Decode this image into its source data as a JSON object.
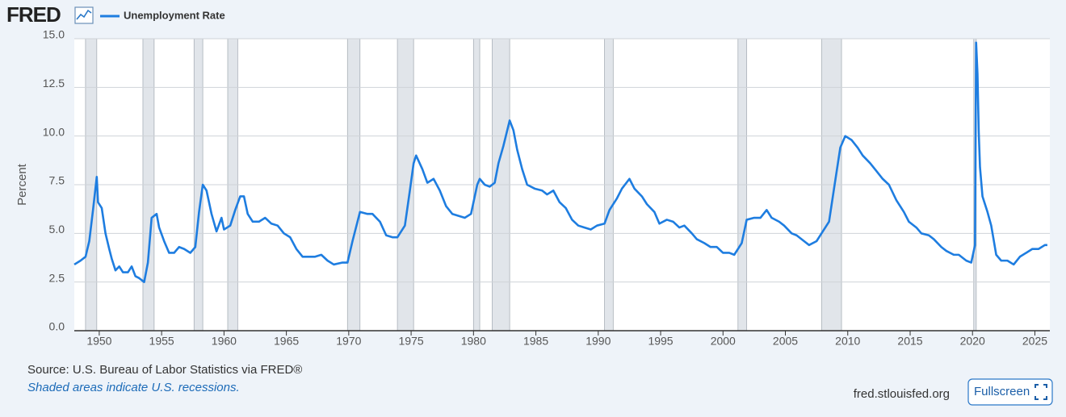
{
  "header": {
    "logo": "FRED"
  },
  "chart_data": {
    "type": "line",
    "ylabel": "Percent",
    "source": "Source: U.S. Bureau of Labor Statistics via FRED®",
    "note": "Shaded areas indicate U.S. recessions.",
    "url": "fred.stlouisfed.org",
    "button": "Fullscreen",
    "xlim": [
      1948,
      2026.2
    ],
    "xticks": [
      1950,
      1955,
      1960,
      1965,
      1970,
      1975,
      1980,
      1985,
      1990,
      1995,
      2000,
      2005,
      2010,
      2015,
      2020,
      2025
    ],
    "ylim": [
      0,
      15
    ],
    "yticks": [
      {
        "value": 0,
        "label": "0.0"
      },
      {
        "value": 2.5,
        "label": "2.5"
      },
      {
        "value": 5,
        "label": "5.0"
      },
      {
        "value": 7.5,
        "label": "7.5"
      },
      {
        "value": 10,
        "label": "10.0"
      },
      {
        "value": 12.5,
        "label": "12.5"
      },
      {
        "value": 15,
        "label": "15.0"
      }
    ],
    "grid": true,
    "recession_color": "#e1e5ea",
    "recessions": [
      [
        1948.9,
        1949.8
      ],
      [
        1953.5,
        1954.4
      ],
      [
        1957.6,
        1958.3
      ],
      [
        1960.3,
        1961.1
      ],
      [
        1969.9,
        1970.9
      ],
      [
        1973.9,
        1975.2
      ],
      [
        1980.0,
        1980.5
      ],
      [
        1981.5,
        1982.9
      ],
      [
        1990.5,
        1991.2
      ],
      [
        2001.2,
        2001.9
      ],
      [
        2007.9,
        2009.5
      ],
      [
        2020.1,
        2020.3
      ]
    ],
    "x": [
      1948.0,
      1948.5,
      1948.9,
      1949.2,
      1949.5,
      1949.8,
      1949.9,
      1950.2,
      1950.5,
      1950.8,
      1951.0,
      1951.3,
      1951.6,
      1951.9,
      1952.3,
      1952.6,
      1952.9,
      1953.2,
      1953.6,
      1953.9,
      1954.2,
      1954.6,
      1954.8,
      1955.2,
      1955.6,
      1956.0,
      1956.4,
      1956.8,
      1957.3,
      1957.7,
      1958.0,
      1958.3,
      1958.6,
      1959.0,
      1959.4,
      1959.8,
      1960.0,
      1960.5,
      1960.9,
      1961.3,
      1961.6,
      1961.9,
      1962.3,
      1962.8,
      1963.3,
      1963.8,
      1964.3,
      1964.8,
      1965.3,
      1965.8,
      1966.3,
      1966.8,
      1967.3,
      1967.8,
      1968.3,
      1968.8,
      1969.5,
      1969.9,
      1970.3,
      1970.9,
      1971.5,
      1971.9,
      1972.5,
      1973.0,
      1973.5,
      1973.9,
      1974.5,
      1974.9,
      1975.2,
      1975.4,
      1975.9,
      1976.3,
      1976.8,
      1977.3,
      1977.8,
      1978.3,
      1978.8,
      1979.3,
      1979.8,
      1980.3,
      1980.5,
      1980.9,
      1981.3,
      1981.7,
      1982.0,
      1982.4,
      1982.9,
      1983.2,
      1983.5,
      1983.9,
      1984.3,
      1984.9,
      1985.5,
      1985.9,
      1986.4,
      1986.9,
      1987.4,
      1987.9,
      1988.4,
      1988.9,
      1989.4,
      1989.9,
      1990.5,
      1990.9,
      1991.5,
      1991.9,
      1992.5,
      1992.9,
      1993.5,
      1993.9,
      1994.5,
      1994.9,
      1995.5,
      1996.0,
      1996.5,
      1996.9,
      1997.5,
      1997.9,
      1998.5,
      1999.0,
      1999.5,
      2000.0,
      2000.5,
      2000.9,
      2001.5,
      2001.9,
      2002.5,
      2003.0,
      2003.5,
      2003.9,
      2004.5,
      2004.9,
      2005.5,
      2005.9,
      2006.5,
      2006.9,
      2007.5,
      2007.9,
      2008.5,
      2008.9,
      2009.4,
      2009.8,
      2010.3,
      2010.8,
      2011.2,
      2011.8,
      2012.3,
      2012.8,
      2013.3,
      2013.9,
      2014.5,
      2014.9,
      2015.5,
      2015.9,
      2016.5,
      2016.9,
      2017.5,
      2017.9,
      2018.5,
      2018.9,
      2019.5,
      2019.9,
      2020.2,
      2020.29,
      2020.4,
      2020.5,
      2020.6,
      2020.8,
      2021.2,
      2021.5,
      2021.9,
      2022.3,
      2022.8,
      2023.3,
      2023.8,
      2024.3,
      2024.8,
      2025.3,
      2025.8,
      2026.0
    ],
    "series": [
      {
        "name": "Unemployment Rate",
        "color": "#1e7de0",
        "values": [
          3.4,
          3.6,
          3.8,
          4.6,
          6.2,
          7.9,
          6.6,
          6.3,
          5.0,
          4.2,
          3.7,
          3.1,
          3.3,
          3.0,
          3.0,
          3.3,
          2.8,
          2.7,
          2.5,
          3.5,
          5.8,
          6.0,
          5.3,
          4.6,
          4.0,
          4.0,
          4.3,
          4.2,
          4.0,
          4.3,
          6.1,
          7.5,
          7.2,
          6.0,
          5.1,
          5.8,
          5.2,
          5.4,
          6.2,
          6.9,
          6.9,
          6.0,
          5.6,
          5.6,
          5.8,
          5.5,
          5.4,
          5.0,
          4.8,
          4.2,
          3.8,
          3.8,
          3.8,
          3.9,
          3.6,
          3.4,
          3.5,
          3.5,
          4.6,
          6.1,
          6.0,
          6.0,
          5.6,
          4.9,
          4.8,
          4.8,
          5.4,
          7.2,
          8.6,
          9.0,
          8.3,
          7.6,
          7.8,
          7.2,
          6.4,
          6.0,
          5.9,
          5.8,
          6.0,
          7.5,
          7.8,
          7.5,
          7.4,
          7.6,
          8.6,
          9.5,
          10.8,
          10.3,
          9.3,
          8.3,
          7.5,
          7.3,
          7.2,
          7.0,
          7.2,
          6.6,
          6.3,
          5.7,
          5.4,
          5.3,
          5.2,
          5.4,
          5.5,
          6.2,
          6.8,
          7.3,
          7.8,
          7.3,
          6.9,
          6.5,
          6.1,
          5.5,
          5.7,
          5.6,
          5.3,
          5.4,
          5.0,
          4.7,
          4.5,
          4.3,
          4.3,
          4.0,
          4.0,
          3.9,
          4.5,
          5.7,
          5.8,
          5.8,
          6.2,
          5.8,
          5.6,
          5.4,
          5.0,
          4.9,
          4.6,
          4.4,
          4.6,
          5.0,
          5.6,
          7.3,
          9.4,
          10.0,
          9.8,
          9.4,
          9.0,
          8.6,
          8.2,
          7.8,
          7.5,
          6.7,
          6.1,
          5.6,
          5.3,
          5.0,
          4.9,
          4.7,
          4.3,
          4.1,
          3.9,
          3.9,
          3.6,
          3.5,
          4.4,
          14.8,
          13.2,
          10.2,
          8.4,
          6.9,
          6.1,
          5.4,
          3.9,
          3.6,
          3.6,
          3.4,
          3.8,
          4.0,
          4.2,
          4.2,
          4.4,
          4.4
        ]
      }
    ]
  }
}
